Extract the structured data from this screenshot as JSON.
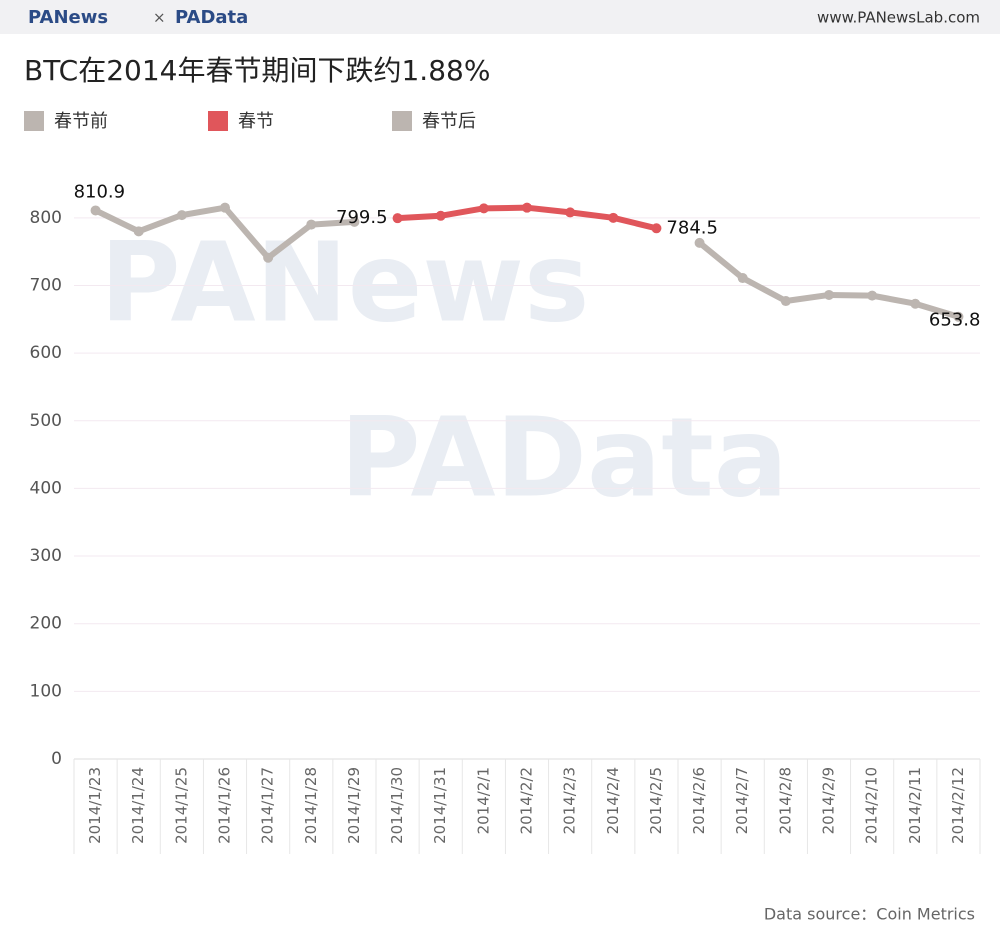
{
  "header": {
    "logo_left": "PANews",
    "separator": "×",
    "logo_right": "PAData",
    "url": "www.PANewsLab.com"
  },
  "watermarks": [
    "PANews",
    "PAData"
  ],
  "source": "Data source：Coin Metrics",
  "chart_data": {
    "type": "line",
    "title": "BTC在2014年春节期间下跌约1.88%",
    "categories": [
      "2014/1/23",
      "2014/1/24",
      "2014/1/25",
      "2014/1/26",
      "2014/1/27",
      "2014/1/28",
      "2014/1/29",
      "2014/1/30",
      "2014/1/31",
      "2014/2/1",
      "2014/2/2",
      "2014/2/3",
      "2014/2/4",
      "2014/2/5",
      "2014/2/6",
      "2014/2/7",
      "2014/2/8",
      "2014/2/9",
      "2014/2/10",
      "2014/2/11",
      "2014/2/12"
    ],
    "series": [
      {
        "name": "春节前",
        "color": "#bcb5b0",
        "values": [
          810.9,
          780,
          804,
          815,
          741,
          790,
          794,
          null,
          null,
          null,
          null,
          null,
          null,
          null,
          null,
          null,
          null,
          null,
          null,
          null,
          null
        ],
        "value_labels": [
          "810.9",
          null,
          null,
          null,
          null,
          null,
          null,
          null,
          null,
          null,
          null,
          null,
          null,
          null,
          null,
          null,
          null,
          null,
          null,
          null,
          null
        ]
      },
      {
        "name": "春节",
        "color": "#e0565b",
        "values": [
          null,
          null,
          null,
          null,
          null,
          null,
          null,
          799.5,
          803,
          814,
          815,
          808,
          800,
          784.5,
          null,
          null,
          null,
          null,
          null,
          null,
          null
        ],
        "value_labels": [
          null,
          null,
          null,
          null,
          null,
          null,
          null,
          "799.5",
          null,
          null,
          null,
          null,
          null,
          "784.5",
          null,
          null,
          null,
          null,
          null,
          null,
          null
        ]
      },
      {
        "name": "春节后",
        "color": "#bcb5b0",
        "values": [
          null,
          null,
          null,
          null,
          null,
          null,
          null,
          null,
          null,
          null,
          null,
          null,
          null,
          null,
          763,
          711,
          677,
          686,
          685,
          673,
          653.8
        ],
        "value_labels": [
          null,
          null,
          null,
          null,
          null,
          null,
          null,
          null,
          null,
          null,
          null,
          null,
          null,
          null,
          null,
          null,
          null,
          null,
          null,
          null,
          "653.8"
        ]
      }
    ],
    "ylim": [
      0,
      850
    ],
    "yticks": [
      0,
      100,
      200,
      300,
      400,
      500,
      600,
      700,
      800
    ],
    "grid": true
  }
}
